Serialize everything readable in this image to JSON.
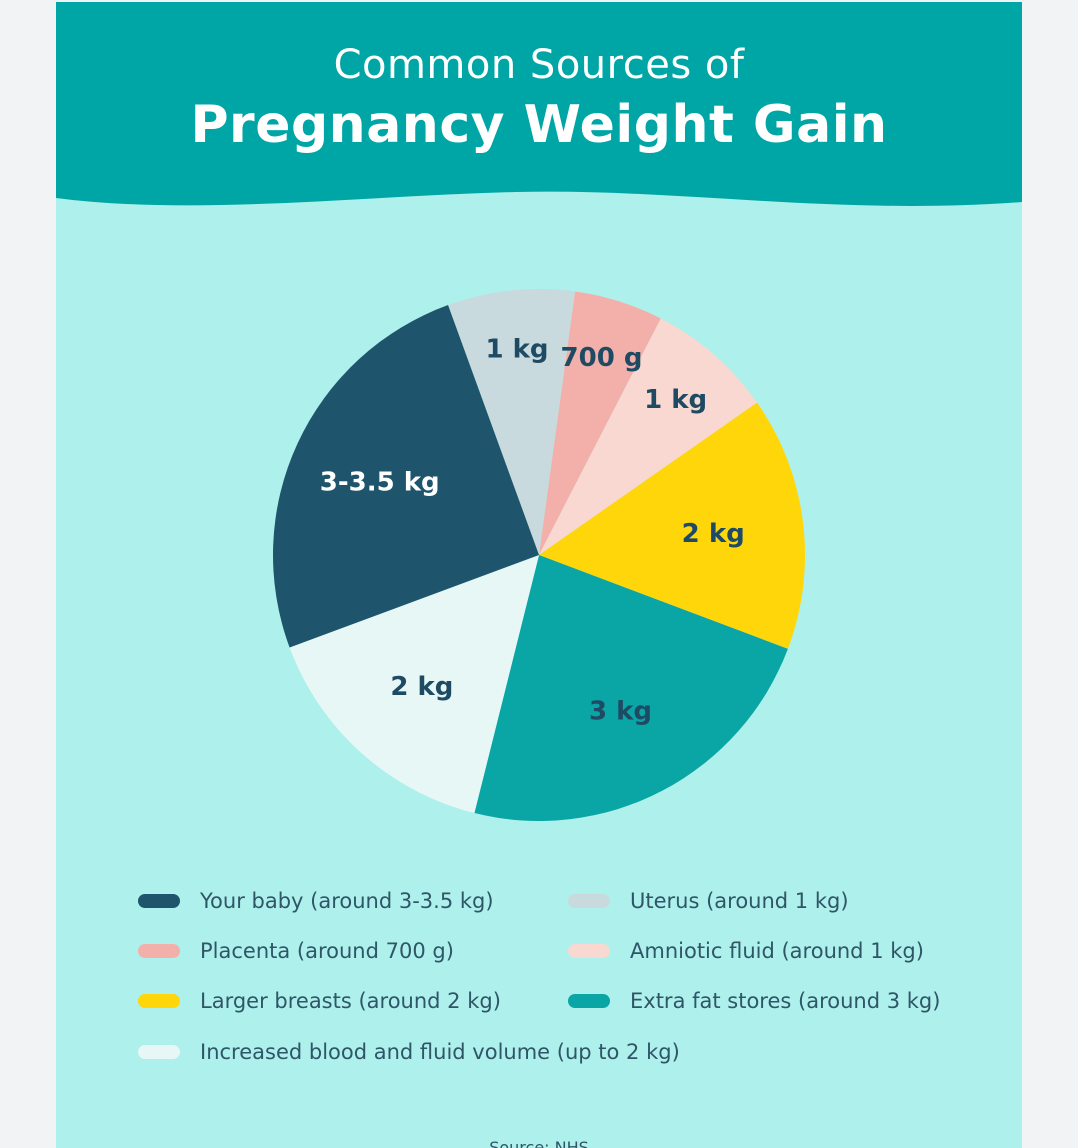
{
  "title": {
    "line1": "Common Sources of",
    "line2": "Pregnancy Weight Gain"
  },
  "colors": {
    "header": "#00a6a6",
    "background": "#aef0eb",
    "text_dark": "#2f5668"
  },
  "chart_data": {
    "type": "pie",
    "title": "Common Sources of Pregnancy Weight Gain",
    "slices": [
      {
        "label": "Uterus (around 1 kg)",
        "value": 1,
        "value_label": "1 kg",
        "color": "#c9dade",
        "label_color": "#1e4b63"
      },
      {
        "label": "Placenta (around 700 g)",
        "value": 0.7,
        "value_label": "700 g",
        "color": "#f3b0aa",
        "label_color": "#1e4b63"
      },
      {
        "label": "Amniotic fluid (around 1 kg)",
        "value": 1,
        "value_label": "1 kg",
        "color": "#f8d8d0",
        "label_color": "#1e4b63"
      },
      {
        "label": "Larger breasts (around 2 kg)",
        "value": 2,
        "value_label": "2 kg",
        "color": "#ffd60a",
        "label_color": "#1e4b63"
      },
      {
        "label": "Extra fat stores (around 3 kg)",
        "value": 3,
        "value_label": "3 kg",
        "color": "#0aa5a5",
        "label_color": "#1e4b63"
      },
      {
        "label": "Increased blood and fluid volume (up to 2 kg)",
        "value": 2,
        "value_label": "2 kg",
        "color": "#e6f7f6",
        "label_color": "#1e4b63"
      },
      {
        "label": "Your baby (around 3-3.5 kg)",
        "value": 3.25,
        "value_label": "3-3.5 kg",
        "color": "#1e546c",
        "label_color": "#ffffff"
      }
    ],
    "legend_placement": "bottom"
  },
  "legend": [
    {
      "label": "Your baby (around 3-3.5 kg)",
      "color": "#1e546c"
    },
    {
      "label": "Uterus (around 1 kg)",
      "color": "#c9dade"
    },
    {
      "label": "Placenta (around 700 g)",
      "color": "#f3b0aa"
    },
    {
      "label": "Amniotic fluid (around 1 kg)",
      "color": "#f8d8d0"
    },
    {
      "label": "Larger breasts (around 2 kg)",
      "color": "#ffd60a"
    },
    {
      "label": "Extra fat stores (around 3 kg)",
      "color": "#0aa5a5"
    },
    {
      "label": "Increased blood and fluid volume (up to 2 kg)",
      "color": "#e6f7f6"
    }
  ],
  "footer": {
    "source": "Source: NHS"
  }
}
